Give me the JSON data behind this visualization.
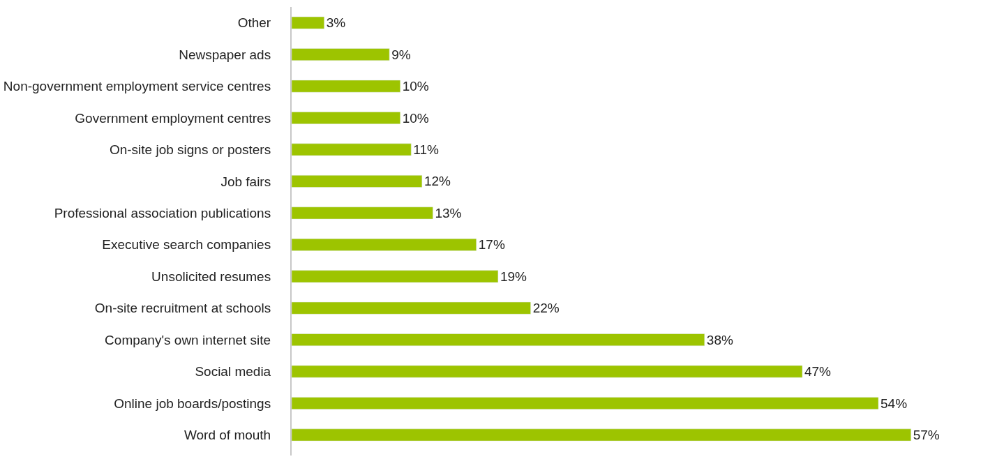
{
  "chart_data": {
    "type": "bar",
    "orientation": "horizontal",
    "tick_labels": "y",
    "legend": false,
    "color": "#9dc400",
    "categories": [
      "Other",
      "Newspaper ads",
      "Non-government employment service centres",
      "Government employment centres",
      "On-site job signs or posters",
      "Job fairs",
      "Professional association publications",
      "Executive search companies",
      "Unsolicited resumes",
      "On-site recruitment at schools",
      "Company's own internet site",
      "Social media",
      "Online job boards/postings",
      "Word of mouth"
    ],
    "values": [
      3,
      9,
      10,
      10,
      11,
      12,
      13,
      17,
      19,
      22,
      38,
      47,
      54,
      57
    ],
    "value_labels": [
      "3%",
      "9%",
      "10%",
      "10%",
      "11%",
      "12%",
      "13%",
      "17%",
      "19%",
      "22%",
      "38%",
      "47%",
      "54%",
      "57%"
    ]
  }
}
